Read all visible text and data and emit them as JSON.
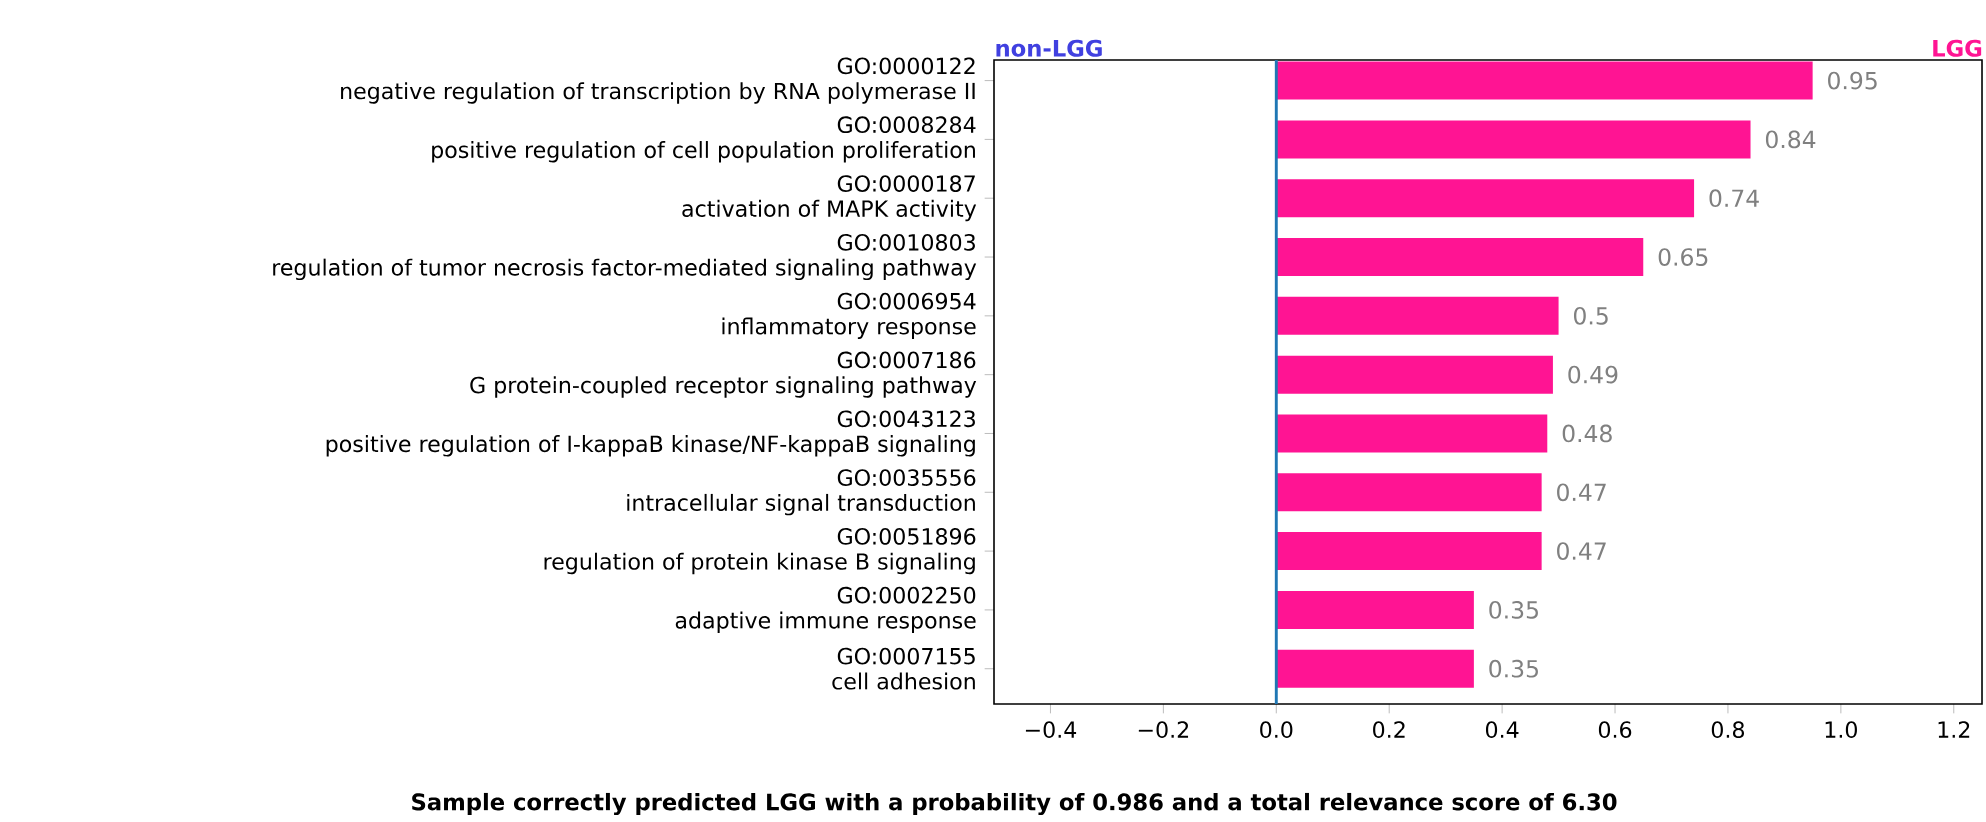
{
  "chart_data": {
    "type": "bar",
    "orientation": "horizontal",
    "categories": [
      "GO:0000122\nnegative regulation of transcription by RNA polymerase II",
      "GO:0008284\npositive regulation of cell population proliferation",
      "GO:0000187\nactivation of MAPK activity",
      "GO:0010803\nregulation of tumor necrosis factor-mediated signaling pathway",
      "GO:0006954\ninflammatory response",
      "GO:0007186\nG protein-coupled receptor signaling pathway",
      "GO:0043123\npositive regulation of I-kappaB kinase/NF-kappaB signaling",
      "GO:0035556\nintracellular signal transduction",
      "GO:0051896\nregulation of protein kinase B signaling",
      "GO:0002250\nadaptive immune response",
      "GO:0007155\ncell adhesion"
    ],
    "values": [
      0.95,
      0.84,
      0.74,
      0.65,
      0.5,
      0.49,
      0.48,
      0.47,
      0.47,
      0.35,
      0.35
    ],
    "color": "#ff1493",
    "data_labels": true,
    "xlim": [
      -0.5,
      1.25
    ],
    "xticks": [
      {
        "value": -0.4,
        "label": "−0.4"
      },
      {
        "value": -0.2,
        "label": "−0.2"
      },
      {
        "value": 0,
        "label": "0.0"
      },
      0.2,
      0.4,
      0.6,
      0.8,
      {
        "value": 1,
        "label": "1.0"
      },
      1.2
    ],
    "ref_lines": [
      {
        "axis": "x",
        "value": 0,
        "color": "#1f77b4"
      }
    ],
    "annotations": [
      "non-LGG",
      "LGG",
      "Sample correctly predicted LGG with a probability of 0.986 and a total relevance score of 6.30"
    ],
    "grid": false
  }
}
